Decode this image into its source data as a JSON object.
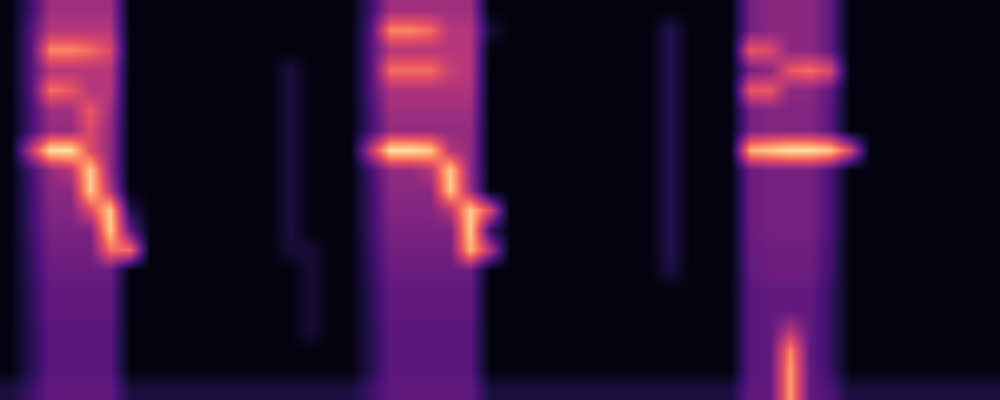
{
  "chart_data": {
    "type": "heatmap",
    "tick_labels": false,
    "xlim": [
      -0.5,
      49.5
    ],
    "ylim": [
      19.5,
      -0.5
    ],
    "zlim": [
      0,
      1
    ],
    "x": [
      0,
      1,
      2,
      3,
      4,
      5,
      6,
      7,
      8,
      9,
      10,
      11,
      12,
      13,
      14,
      15,
      16,
      17,
      18,
      19,
      20,
      21,
      22,
      23,
      24,
      25,
      26,
      27,
      28,
      29,
      30,
      31,
      32,
      33,
      34,
      35,
      36,
      37,
      38,
      39,
      40,
      41,
      42,
      43,
      44,
      45,
      46,
      47,
      48,
      49
    ],
    "y": [
      0,
      1,
      2,
      3,
      4,
      5,
      6,
      7,
      8,
      9,
      10,
      11,
      12,
      13,
      14,
      15,
      16,
      17,
      18,
      19
    ],
    "z": [
      [
        0.02,
        0.2,
        0.45,
        0.45,
        0.45,
        0.45,
        0.02,
        0.02,
        0.02,
        0.02,
        0.02,
        0.02,
        0.02,
        0.02,
        0.02,
        0.02,
        0.02,
        0.02,
        0.2,
        0.45,
        0.45,
        0.45,
        0.45,
        0.45,
        0.02,
        0.02,
        0.02,
        0.02,
        0.02,
        0.02,
        0.02,
        0.02,
        0.02,
        0.02,
        0.02,
        0.02,
        0.02,
        0.35,
        0.4,
        0.4,
        0.4,
        0.3,
        0.02,
        0.02,
        0.02,
        0.02,
        0.02,
        0.02,
        0.02,
        0.02
      ],
      [
        0.02,
        0.25,
        0.5,
        0.5,
        0.5,
        0.5,
        0.02,
        0.02,
        0.02,
        0.02,
        0.02,
        0.02,
        0.02,
        0.02,
        0.02,
        0.02,
        0.02,
        0.02,
        0.25,
        0.75,
        0.75,
        0.7,
        0.5,
        0.5,
        0.1,
        0.02,
        0.02,
        0.02,
        0.02,
        0.02,
        0.02,
        0.02,
        0.02,
        0.15,
        0.02,
        0.02,
        0.02,
        0.35,
        0.4,
        0.4,
        0.4,
        0.3,
        0.02,
        0.02,
        0.02,
        0.02,
        0.02,
        0.02,
        0.02,
        0.02
      ],
      [
        0.02,
        0.25,
        0.75,
        0.75,
        0.7,
        0.6,
        0.02,
        0.02,
        0.02,
        0.02,
        0.02,
        0.02,
        0.02,
        0.02,
        0.02,
        0.02,
        0.02,
        0.02,
        0.25,
        0.5,
        0.5,
        0.5,
        0.5,
        0.5,
        0.02,
        0.02,
        0.02,
        0.02,
        0.02,
        0.02,
        0.02,
        0.02,
        0.02,
        0.15,
        0.02,
        0.02,
        0.02,
        0.65,
        0.6,
        0.4,
        0.4,
        0.3,
        0.02,
        0.02,
        0.02,
        0.02,
        0.02,
        0.02,
        0.02,
        0.02
      ],
      [
        0.02,
        0.25,
        0.5,
        0.5,
        0.5,
        0.5,
        0.02,
        0.02,
        0.02,
        0.02,
        0.02,
        0.02,
        0.02,
        0.02,
        0.12,
        0.02,
        0.02,
        0.02,
        0.25,
        0.7,
        0.7,
        0.7,
        0.55,
        0.5,
        0.02,
        0.02,
        0.02,
        0.02,
        0.02,
        0.02,
        0.02,
        0.02,
        0.02,
        0.15,
        0.02,
        0.02,
        0.02,
        0.35,
        0.4,
        0.65,
        0.7,
        0.6,
        0.02,
        0.02,
        0.02,
        0.02,
        0.02,
        0.02,
        0.02,
        0.02
      ],
      [
        0.02,
        0.25,
        0.7,
        0.65,
        0.5,
        0.5,
        0.02,
        0.02,
        0.02,
        0.02,
        0.02,
        0.02,
        0.02,
        0.02,
        0.12,
        0.02,
        0.02,
        0.02,
        0.25,
        0.48,
        0.48,
        0.48,
        0.48,
        0.48,
        0.02,
        0.02,
        0.02,
        0.02,
        0.02,
        0.02,
        0.02,
        0.02,
        0.02,
        0.15,
        0.02,
        0.02,
        0.02,
        0.65,
        0.65,
        0.4,
        0.4,
        0.3,
        0.02,
        0.02,
        0.02,
        0.02,
        0.02,
        0.02,
        0.02,
        0.02
      ],
      [
        0.02,
        0.22,
        0.45,
        0.45,
        0.65,
        0.45,
        0.02,
        0.02,
        0.02,
        0.02,
        0.02,
        0.02,
        0.02,
        0.02,
        0.12,
        0.02,
        0.02,
        0.02,
        0.22,
        0.45,
        0.45,
        0.45,
        0.45,
        0.45,
        0.02,
        0.02,
        0.02,
        0.02,
        0.02,
        0.02,
        0.02,
        0.02,
        0.02,
        0.15,
        0.02,
        0.02,
        0.02,
        0.35,
        0.38,
        0.38,
        0.38,
        0.28,
        0.02,
        0.02,
        0.02,
        0.02,
        0.02,
        0.02,
        0.02,
        0.02
      ],
      [
        0.02,
        0.22,
        0.42,
        0.42,
        0.6,
        0.42,
        0.02,
        0.02,
        0.02,
        0.02,
        0.02,
        0.02,
        0.02,
        0.02,
        0.12,
        0.02,
        0.02,
        0.02,
        0.22,
        0.42,
        0.42,
        0.42,
        0.42,
        0.42,
        0.02,
        0.02,
        0.02,
        0.02,
        0.02,
        0.02,
        0.02,
        0.02,
        0.02,
        0.15,
        0.02,
        0.02,
        0.02,
        0.35,
        0.38,
        0.38,
        0.38,
        0.28,
        0.02,
        0.02,
        0.02,
        0.02,
        0.02,
        0.02,
        0.02,
        0.02
      ],
      [
        0.02,
        0.5,
        0.95,
        0.95,
        0.6,
        0.42,
        0.02,
        0.02,
        0.02,
        0.02,
        0.02,
        0.02,
        0.02,
        0.02,
        0.12,
        0.02,
        0.02,
        0.02,
        0.5,
        0.95,
        0.95,
        0.9,
        0.5,
        0.42,
        0.02,
        0.02,
        0.02,
        0.02,
        0.02,
        0.02,
        0.02,
        0.02,
        0.02,
        0.15,
        0.02,
        0.02,
        0.02,
        0.85,
        0.9,
        0.95,
        0.95,
        0.9,
        0.6,
        0.02,
        0.02,
        0.02,
        0.02,
        0.02,
        0.02,
        0.02
      ],
      [
        0.02,
        0.22,
        0.42,
        0.5,
        0.9,
        0.42,
        0.02,
        0.02,
        0.02,
        0.02,
        0.02,
        0.02,
        0.02,
        0.02,
        0.12,
        0.02,
        0.02,
        0.02,
        0.22,
        0.42,
        0.42,
        0.5,
        0.9,
        0.42,
        0.02,
        0.02,
        0.02,
        0.02,
        0.02,
        0.02,
        0.02,
        0.02,
        0.02,
        0.15,
        0.02,
        0.02,
        0.02,
        0.32,
        0.35,
        0.35,
        0.35,
        0.25,
        0.02,
        0.02,
        0.02,
        0.02,
        0.02,
        0.02,
        0.02,
        0.02
      ],
      [
        0.02,
        0.2,
        0.4,
        0.4,
        0.9,
        0.5,
        0.02,
        0.02,
        0.02,
        0.02,
        0.02,
        0.02,
        0.02,
        0.02,
        0.12,
        0.02,
        0.02,
        0.02,
        0.2,
        0.4,
        0.4,
        0.4,
        0.9,
        0.45,
        0.02,
        0.02,
        0.02,
        0.02,
        0.02,
        0.02,
        0.02,
        0.02,
        0.02,
        0.15,
        0.02,
        0.02,
        0.02,
        0.32,
        0.35,
        0.35,
        0.35,
        0.25,
        0.02,
        0.02,
        0.02,
        0.02,
        0.02,
        0.02,
        0.02,
        0.02
      ],
      [
        0.02,
        0.2,
        0.38,
        0.38,
        0.6,
        0.9,
        0.15,
        0.02,
        0.02,
        0.02,
        0.02,
        0.02,
        0.02,
        0.02,
        0.12,
        0.02,
        0.02,
        0.02,
        0.2,
        0.38,
        0.38,
        0.38,
        0.5,
        0.9,
        0.6,
        0.02,
        0.02,
        0.02,
        0.02,
        0.02,
        0.02,
        0.02,
        0.02,
        0.15,
        0.02,
        0.02,
        0.02,
        0.32,
        0.35,
        0.35,
        0.35,
        0.25,
        0.02,
        0.02,
        0.02,
        0.02,
        0.02,
        0.02,
        0.02,
        0.02
      ],
      [
        0.02,
        0.2,
        0.36,
        0.36,
        0.36,
        0.9,
        0.3,
        0.02,
        0.02,
        0.02,
        0.02,
        0.02,
        0.02,
        0.02,
        0.12,
        0.02,
        0.02,
        0.02,
        0.2,
        0.36,
        0.36,
        0.36,
        0.36,
        0.9,
        0.2,
        0.02,
        0.02,
        0.02,
        0.02,
        0.02,
        0.02,
        0.02,
        0.02,
        0.15,
        0.02,
        0.02,
        0.02,
        0.32,
        0.35,
        0.35,
        0.35,
        0.25,
        0.02,
        0.02,
        0.02,
        0.02,
        0.02,
        0.02,
        0.02,
        0.02
      ],
      [
        0.02,
        0.18,
        0.34,
        0.34,
        0.34,
        0.7,
        0.7,
        0.02,
        0.02,
        0.02,
        0.02,
        0.02,
        0.02,
        0.02,
        0.1,
        0.1,
        0.02,
        0.02,
        0.18,
        0.34,
        0.34,
        0.34,
        0.34,
        0.85,
        0.5,
        0.02,
        0.02,
        0.02,
        0.02,
        0.02,
        0.02,
        0.02,
        0.02,
        0.15,
        0.02,
        0.02,
        0.02,
        0.3,
        0.33,
        0.33,
        0.33,
        0.22,
        0.02,
        0.02,
        0.02,
        0.02,
        0.02,
        0.02,
        0.02,
        0.02
      ],
      [
        0.02,
        0.18,
        0.32,
        0.32,
        0.32,
        0.32,
        0.02,
        0.02,
        0.02,
        0.02,
        0.02,
        0.02,
        0.02,
        0.02,
        0.02,
        0.1,
        0.02,
        0.02,
        0.18,
        0.32,
        0.32,
        0.32,
        0.32,
        0.32,
        0.02,
        0.02,
        0.02,
        0.02,
        0.02,
        0.02,
        0.02,
        0.02,
        0.02,
        0.12,
        0.02,
        0.02,
        0.02,
        0.3,
        0.33,
        0.33,
        0.33,
        0.22,
        0.02,
        0.02,
        0.02,
        0.02,
        0.02,
        0.02,
        0.02,
        0.02
      ],
      [
        0.02,
        0.16,
        0.3,
        0.3,
        0.3,
        0.3,
        0.02,
        0.02,
        0.02,
        0.02,
        0.02,
        0.02,
        0.02,
        0.02,
        0.02,
        0.1,
        0.02,
        0.02,
        0.16,
        0.3,
        0.3,
        0.3,
        0.3,
        0.3,
        0.02,
        0.02,
        0.02,
        0.02,
        0.02,
        0.02,
        0.02,
        0.02,
        0.02,
        0.02,
        0.02,
        0.02,
        0.02,
        0.28,
        0.3,
        0.3,
        0.3,
        0.2,
        0.02,
        0.02,
        0.02,
        0.02,
        0.02,
        0.02,
        0.02,
        0.02
      ],
      [
        0.02,
        0.16,
        0.3,
        0.3,
        0.3,
        0.3,
        0.02,
        0.02,
        0.02,
        0.02,
        0.02,
        0.02,
        0.02,
        0.02,
        0.02,
        0.1,
        0.02,
        0.02,
        0.16,
        0.3,
        0.3,
        0.3,
        0.3,
        0.3,
        0.02,
        0.02,
        0.02,
        0.02,
        0.02,
        0.02,
        0.02,
        0.02,
        0.02,
        0.02,
        0.02,
        0.02,
        0.02,
        0.28,
        0.3,
        0.3,
        0.3,
        0.2,
        0.02,
        0.02,
        0.02,
        0.02,
        0.02,
        0.02,
        0.02,
        0.02
      ],
      [
        0.02,
        0.15,
        0.28,
        0.28,
        0.28,
        0.28,
        0.02,
        0.02,
        0.02,
        0.02,
        0.02,
        0.02,
        0.02,
        0.02,
        0.02,
        0.1,
        0.02,
        0.02,
        0.15,
        0.28,
        0.28,
        0.28,
        0.28,
        0.28,
        0.02,
        0.02,
        0.02,
        0.02,
        0.02,
        0.02,
        0.02,
        0.02,
        0.02,
        0.02,
        0.02,
        0.02,
        0.02,
        0.28,
        0.3,
        0.5,
        0.3,
        0.2,
        0.02,
        0.02,
        0.02,
        0.02,
        0.02,
        0.02,
        0.02,
        0.02
      ],
      [
        0.02,
        0.15,
        0.28,
        0.28,
        0.28,
        0.28,
        0.02,
        0.02,
        0.02,
        0.02,
        0.02,
        0.02,
        0.02,
        0.02,
        0.02,
        0.02,
        0.02,
        0.02,
        0.15,
        0.28,
        0.28,
        0.28,
        0.28,
        0.28,
        0.02,
        0.02,
        0.02,
        0.02,
        0.02,
        0.02,
        0.02,
        0.02,
        0.02,
        0.02,
        0.02,
        0.02,
        0.02,
        0.28,
        0.3,
        0.75,
        0.3,
        0.2,
        0.02,
        0.02,
        0.02,
        0.02,
        0.02,
        0.02,
        0.02,
        0.02
      ],
      [
        0.02,
        0.15,
        0.28,
        0.28,
        0.28,
        0.28,
        0.02,
        0.02,
        0.02,
        0.02,
        0.02,
        0.02,
        0.02,
        0.02,
        0.02,
        0.02,
        0.02,
        0.02,
        0.15,
        0.28,
        0.28,
        0.28,
        0.28,
        0.28,
        0.02,
        0.02,
        0.02,
        0.02,
        0.02,
        0.02,
        0.02,
        0.02,
        0.02,
        0.02,
        0.02,
        0.02,
        0.02,
        0.28,
        0.3,
        0.8,
        0.3,
        0.2,
        0.02,
        0.02,
        0.02,
        0.02,
        0.02,
        0.02,
        0.02,
        0.02
      ],
      [
        0.12,
        0.2,
        0.3,
        0.3,
        0.3,
        0.3,
        0.12,
        0.12,
        0.12,
        0.12,
        0.12,
        0.12,
        0.12,
        0.12,
        0.12,
        0.12,
        0.12,
        0.12,
        0.2,
        0.3,
        0.3,
        0.3,
        0.3,
        0.3,
        0.12,
        0.12,
        0.12,
        0.12,
        0.12,
        0.12,
        0.12,
        0.12,
        0.12,
        0.12,
        0.12,
        0.12,
        0.12,
        0.3,
        0.3,
        0.8,
        0.3,
        0.25,
        0.12,
        0.12,
        0.12,
        0.12,
        0.12,
        0.12,
        0.12,
        0.12
      ]
    ]
  }
}
